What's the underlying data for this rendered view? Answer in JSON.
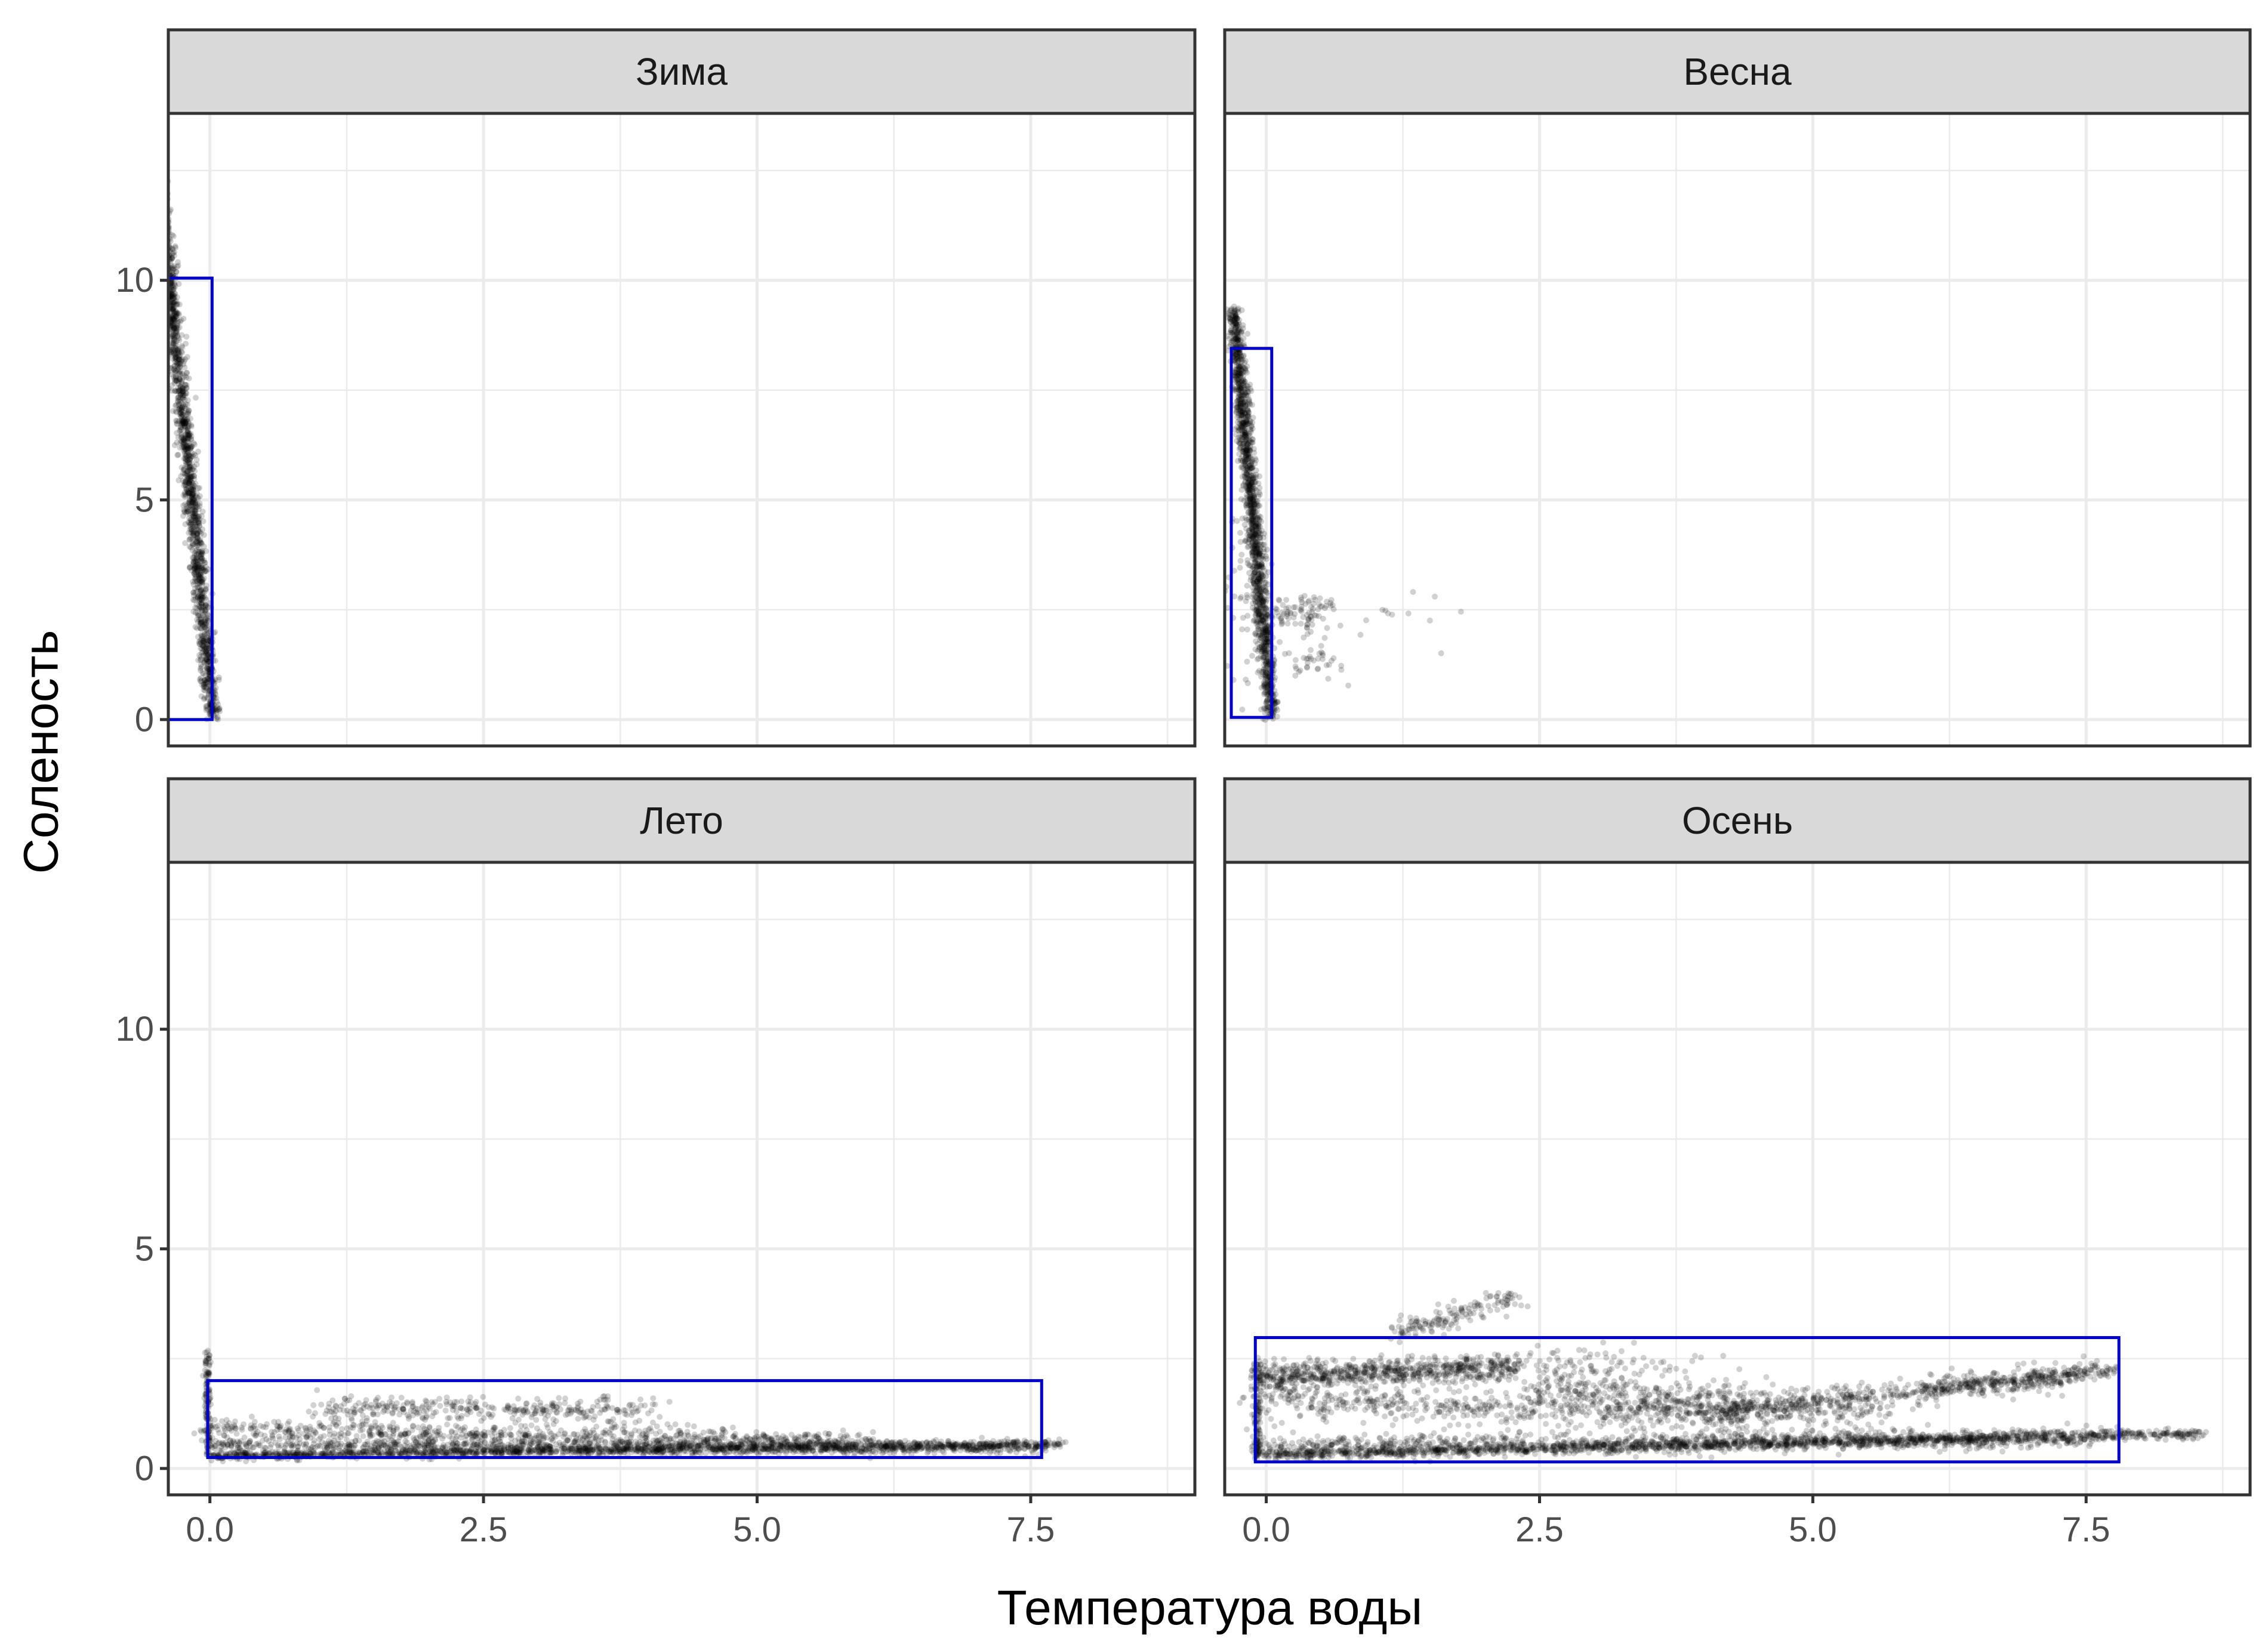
{
  "chart_data": {
    "type": "scatter",
    "xlabel": "Температура воды",
    "ylabel": "Соленость",
    "xlim": [
      -0.38,
      9.0
    ],
    "ylim": [
      -0.6,
      13.8
    ],
    "x_ticks": [
      0.0,
      2.5,
      5.0,
      7.5
    ],
    "x_tick_labels": [
      "0.0",
      "2.5",
      "5.0",
      "7.5"
    ],
    "y_ticks": [
      0,
      5,
      10
    ],
    "y_tick_labels": [
      "0",
      "5",
      "10"
    ],
    "grid": true,
    "point_color": "#000000",
    "rect_color": "#0000cc",
    "facets": [
      {
        "title": "Зима",
        "rect": {
          "xmin": -0.38,
          "xmax": 0.02,
          "ymin": 0.0,
          "ymax": 10.05
        },
        "bands": [
          {
            "x0": -0.48,
            "y0": 12.8,
            "x1": 0.03,
            "y1": 0.05,
            "xsd": 0.035,
            "ysd": 0.05,
            "n": 1800
          }
        ],
        "clusters": []
      },
      {
        "title": "Весна",
        "rect": {
          "xmin": -0.32,
          "xmax": 0.05,
          "ymin": 0.05,
          "ymax": 8.45
        },
        "bands": [
          {
            "x0": -0.3,
            "y0": 9.35,
            "x1": 0.05,
            "y1": 0.05,
            "xsd": 0.035,
            "ysd": 0.05,
            "n": 1500
          }
        ],
        "clusters": [
          {
            "x": 0.3,
            "y": 2.45,
            "xsd": 0.2,
            "ysd": 0.2,
            "n": 90
          },
          {
            "x": 0.4,
            "y": 1.4,
            "xsd": 0.15,
            "ysd": 0.25,
            "n": 40
          },
          {
            "x": -0.2,
            "y": 3.3,
            "xsd": 0.1,
            "ysd": 1.2,
            "n": 60
          },
          {
            "x": 1.2,
            "y": 2.4,
            "xsd": 0.25,
            "ysd": 0.3,
            "n": 12
          }
        ]
      },
      {
        "title": "Лето",
        "rect": {
          "xmin": -0.02,
          "xmax": 7.6,
          "ymin": 0.25,
          "ymax": 2.0
        },
        "bands": [
          {
            "x0": 0.0,
            "y0": 0.3,
            "x1": 7.78,
            "y1": 0.55,
            "xsd": 0.03,
            "ysd": 0.05,
            "n": 1300
          },
          {
            "x0": 0.0,
            "y0": 0.55,
            "x1": 7.6,
            "y1": 0.48,
            "xsd": 0.05,
            "ysd": 0.08,
            "n": 900
          },
          {
            "x0": 0.0,
            "y0": 0.9,
            "x1": 6.0,
            "y1": 0.6,
            "xsd": 0.1,
            "ysd": 0.12,
            "n": 700
          },
          {
            "x0": 1.0,
            "y0": 1.3,
            "x1": 4.0,
            "y1": 1.35,
            "xsd": 0.2,
            "ysd": 0.15,
            "n": 350
          },
          {
            "x0": -0.02,
            "y0": 0.3,
            "x1": -0.02,
            "y1": 2.65,
            "xsd": 0.015,
            "ysd": 0.03,
            "n": 120
          }
        ],
        "clusters": []
      },
      {
        "title": "Осень",
        "rect": {
          "xmin": -0.1,
          "xmax": 7.8,
          "ymin": 0.15,
          "ymax": 2.98
        },
        "bands": [
          {
            "x0": -0.1,
            "y0": 0.3,
            "x1": 8.55,
            "y1": 0.8,
            "xsd": 0.03,
            "ysd": 0.06,
            "n": 1400
          },
          {
            "x0": -0.1,
            "y0": 0.5,
            "x1": 7.6,
            "y1": 0.7,
            "xsd": 0.06,
            "ysd": 0.12,
            "n": 900
          },
          {
            "x0": -0.1,
            "y0": 2.1,
            "x1": 2.3,
            "y1": 2.3,
            "xsd": 0.05,
            "ysd": 0.15,
            "n": 700
          },
          {
            "x0": -0.1,
            "y0": 1.6,
            "x1": 4.5,
            "y1": 1.2,
            "xsd": 0.12,
            "ysd": 0.2,
            "n": 600
          },
          {
            "x0": 4.0,
            "y0": 1.2,
            "x1": 7.6,
            "y1": 2.2,
            "xsd": 0.12,
            "ysd": 0.15,
            "n": 500
          },
          {
            "x0": 2.5,
            "y0": 1.8,
            "x1": 5.5,
            "y1": 1.3,
            "xsd": 0.15,
            "ysd": 0.2,
            "n": 400
          },
          {
            "x0": 1.2,
            "y0": 3.1,
            "x1": 2.3,
            "y1": 3.9,
            "xsd": 0.08,
            "ysd": 0.12,
            "n": 150
          },
          {
            "x0": 6.0,
            "y0": 1.8,
            "x1": 7.75,
            "y1": 2.25,
            "xsd": 0.05,
            "ysd": 0.08,
            "n": 200
          },
          {
            "x0": -0.08,
            "y0": 0.3,
            "x1": -0.08,
            "y1": 2.5,
            "xsd": 0.02,
            "ysd": 0.05,
            "n": 120
          }
        ],
        "clusters": [
          {
            "x": 3.0,
            "y": 2.3,
            "xsd": 0.5,
            "ysd": 0.25,
            "n": 120
          }
        ]
      }
    ]
  }
}
